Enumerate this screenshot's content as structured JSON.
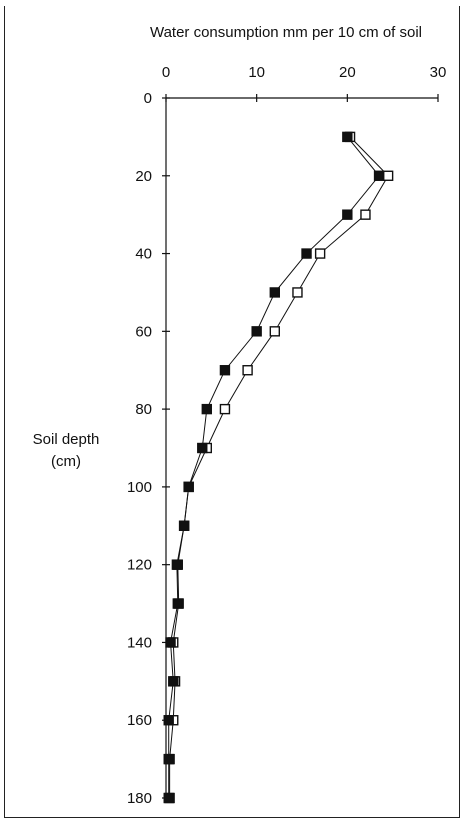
{
  "chart_data": {
    "type": "line",
    "title": "Water consumption mm per 10 cm of soil",
    "xlabel": "Water consumption mm per 10 cm of soil",
    "ylabel_line1": "Soil depth",
    "ylabel_line2": "(cm)",
    "xlim": [
      0,
      30
    ],
    "ylim": [
      0,
      180
    ],
    "x_axis_position": "top",
    "y_axis_inverted": true,
    "x_ticks": [
      "0",
      "10",
      "20",
      "30"
    ],
    "y_ticks": [
      "0",
      "20",
      "40",
      "60",
      "80",
      "100",
      "120",
      "140",
      "160",
      "180"
    ],
    "grid": false,
    "series": [
      {
        "marker": "filled-square",
        "color": "#111111",
        "points": [
          [
            20,
            10
          ],
          [
            23.5,
            20
          ],
          [
            20,
            30
          ],
          [
            15.5,
            40
          ],
          [
            12,
            50
          ],
          [
            10,
            60
          ],
          [
            6.5,
            70
          ],
          [
            4.5,
            80
          ],
          [
            4,
            90
          ],
          [
            2.5,
            100
          ],
          [
            2,
            110
          ],
          [
            1.2,
            120
          ],
          [
            1.3,
            130
          ],
          [
            0.5,
            140
          ],
          [
            0.8,
            150
          ],
          [
            0.3,
            160
          ],
          [
            0.3,
            170
          ],
          [
            0.3,
            180
          ]
        ]
      },
      {
        "marker": "open-square",
        "color": "#111111",
        "points": [
          [
            20.3,
            10
          ],
          [
            24.5,
            20
          ],
          [
            22,
            30
          ],
          [
            17,
            40
          ],
          [
            14.5,
            50
          ],
          [
            12,
            60
          ],
          [
            9,
            70
          ],
          [
            6.5,
            80
          ],
          [
            4.5,
            90
          ],
          [
            2.5,
            100
          ],
          [
            2,
            110
          ],
          [
            1.3,
            120
          ],
          [
            1.4,
            130
          ],
          [
            0.8,
            140
          ],
          [
            1,
            150
          ],
          [
            0.8,
            160
          ],
          [
            0.4,
            170
          ],
          [
            0.4,
            180
          ]
        ]
      }
    ]
  }
}
